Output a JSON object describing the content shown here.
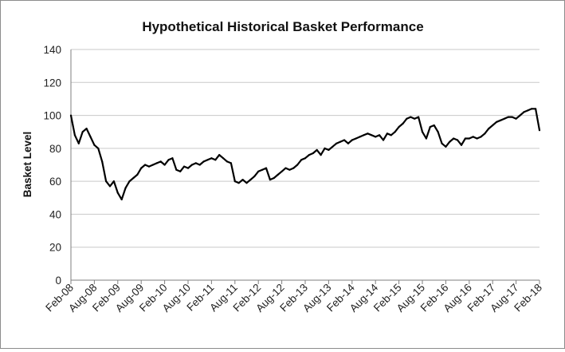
{
  "chart_data": {
    "type": "line",
    "title": "Hypothetical Historical Basket Performance",
    "xlabel": "",
    "ylabel": "Basket Level",
    "ylim": [
      0,
      140
    ],
    "yticks": [
      0,
      20,
      40,
      60,
      80,
      100,
      120,
      140
    ],
    "xticks": [
      "Feb-08",
      "Aug-08",
      "Feb-09",
      "Aug-09",
      "Feb-10",
      "Aug-10",
      "Feb-11",
      "Aug-11",
      "Feb-12",
      "Aug-12",
      "Feb-13",
      "Aug-13",
      "Feb-14",
      "Aug-14",
      "Feb-15",
      "Aug-15",
      "Feb-16",
      "Aug-16",
      "Feb-17",
      "Aug-17",
      "Feb-18"
    ],
    "grid": true,
    "legend": "none",
    "series": [
      {
        "color": "#000000",
        "points": [
          [
            "Feb-08",
            100
          ],
          [
            "Mar-08",
            88
          ],
          [
            "Apr-08",
            83
          ],
          [
            "May-08",
            90
          ],
          [
            "Jun-08",
            92
          ],
          [
            "Jul-08",
            87
          ],
          [
            "Aug-08",
            82
          ],
          [
            "Sep-08",
            80
          ],
          [
            "Oct-08",
            72
          ],
          [
            "Nov-08",
            60
          ],
          [
            "Dec-08",
            57
          ],
          [
            "Jan-09",
            60
          ],
          [
            "Feb-09",
            53
          ],
          [
            "Mar-09",
            49
          ],
          [
            "Apr-09",
            56
          ],
          [
            "May-09",
            60
          ],
          [
            "Jun-09",
            62
          ],
          [
            "Jul-09",
            64
          ],
          [
            "Aug-09",
            68
          ],
          [
            "Sep-09",
            70
          ],
          [
            "Oct-09",
            69
          ],
          [
            "Nov-09",
            70
          ],
          [
            "Dec-09",
            71
          ],
          [
            "Jan-10",
            72
          ],
          [
            "Feb-10",
            70
          ],
          [
            "Mar-10",
            73
          ],
          [
            "Apr-10",
            74
          ],
          [
            "May-10",
            67
          ],
          [
            "Jun-10",
            66
          ],
          [
            "Jul-10",
            69
          ],
          [
            "Aug-10",
            68
          ],
          [
            "Sep-10",
            70
          ],
          [
            "Oct-10",
            71
          ],
          [
            "Nov-10",
            70
          ],
          [
            "Dec-10",
            72
          ],
          [
            "Jan-11",
            73
          ],
          [
            "Feb-11",
            74
          ],
          [
            "Mar-11",
            73
          ],
          [
            "Apr-11",
            76
          ],
          [
            "May-11",
            74
          ],
          [
            "Jun-11",
            72
          ],
          [
            "Jul-11",
            71
          ],
          [
            "Aug-11",
            60
          ],
          [
            "Sep-11",
            59
          ],
          [
            "Oct-11",
            61
          ],
          [
            "Nov-11",
            59
          ],
          [
            "Dec-11",
            61
          ],
          [
            "Jan-12",
            63
          ],
          [
            "Feb-12",
            66
          ],
          [
            "Mar-12",
            67
          ],
          [
            "Apr-12",
            68
          ],
          [
            "May-12",
            61
          ],
          [
            "Jun-12",
            62
          ],
          [
            "Jul-12",
            64
          ],
          [
            "Aug-12",
            66
          ],
          [
            "Sep-12",
            68
          ],
          [
            "Oct-12",
            67
          ],
          [
            "Nov-12",
            68
          ],
          [
            "Dec-12",
            70
          ],
          [
            "Jan-13",
            73
          ],
          [
            "Feb-13",
            74
          ],
          [
            "Mar-13",
            76
          ],
          [
            "Apr-13",
            77
          ],
          [
            "May-13",
            79
          ],
          [
            "Jun-13",
            76
          ],
          [
            "Jul-13",
            80
          ],
          [
            "Aug-13",
            79
          ],
          [
            "Sep-13",
            81
          ],
          [
            "Oct-13",
            83
          ],
          [
            "Nov-13",
            84
          ],
          [
            "Dec-13",
            85
          ],
          [
            "Jan-14",
            83
          ],
          [
            "Feb-14",
            85
          ],
          [
            "Mar-14",
            86
          ],
          [
            "Apr-14",
            87
          ],
          [
            "May-14",
            88
          ],
          [
            "Jun-14",
            89
          ],
          [
            "Jul-14",
            88
          ],
          [
            "Aug-14",
            87
          ],
          [
            "Sep-14",
            88
          ],
          [
            "Oct-14",
            85
          ],
          [
            "Nov-14",
            89
          ],
          [
            "Dec-14",
            88
          ],
          [
            "Jan-15",
            90
          ],
          [
            "Feb-15",
            93
          ],
          [
            "Mar-15",
            95
          ],
          [
            "Apr-15",
            98
          ],
          [
            "May-15",
            99
          ],
          [
            "Jun-15",
            98
          ],
          [
            "Jul-15",
            99
          ],
          [
            "Aug-15",
            90
          ],
          [
            "Sep-15",
            86
          ],
          [
            "Oct-15",
            93
          ],
          [
            "Nov-15",
            94
          ],
          [
            "Dec-15",
            90
          ],
          [
            "Jan-16",
            83
          ],
          [
            "Feb-16",
            81
          ],
          [
            "Mar-16",
            84
          ],
          [
            "Apr-16",
            86
          ],
          [
            "May-16",
            85
          ],
          [
            "Jun-16",
            82
          ],
          [
            "Jul-16",
            86
          ],
          [
            "Aug-16",
            86
          ],
          [
            "Sep-16",
            87
          ],
          [
            "Oct-16",
            86
          ],
          [
            "Nov-16",
            87
          ],
          [
            "Dec-16",
            89
          ],
          [
            "Jan-17",
            92
          ],
          [
            "Feb-17",
            94
          ],
          [
            "Mar-17",
            96
          ],
          [
            "Apr-17",
            97
          ],
          [
            "May-17",
            98
          ],
          [
            "Jun-17",
            99
          ],
          [
            "Jul-17",
            99
          ],
          [
            "Aug-17",
            98
          ],
          [
            "Sep-17",
            100
          ],
          [
            "Oct-17",
            102
          ],
          [
            "Nov-17",
            103
          ],
          [
            "Dec-17",
            104
          ],
          [
            "Jan-18",
            104
          ],
          [
            "Feb-18",
            91
          ]
        ]
      }
    ]
  }
}
